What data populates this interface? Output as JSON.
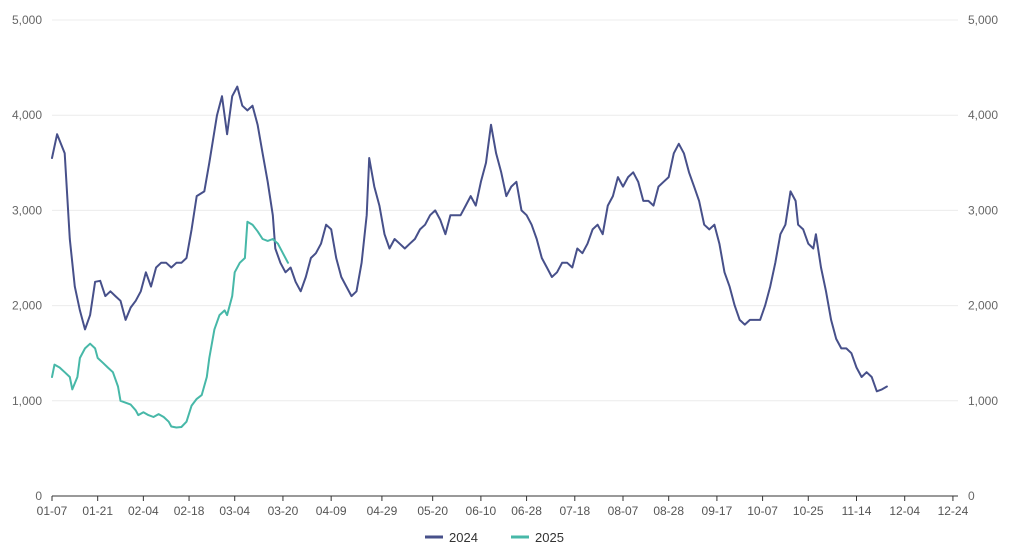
{
  "chart_data": {
    "type": "line",
    "title": "",
    "xlabel": "",
    "ylabel": "",
    "ylim": [
      0,
      5000
    ],
    "y_ticks": [
      "0",
      "1,000",
      "2,000",
      "3,000",
      "4,000",
      "5,000"
    ],
    "y_tick_values": [
      0,
      1000,
      2000,
      3000,
      4000,
      5000
    ],
    "x_range": [
      1,
      358
    ],
    "x_tick_labels": [
      "01-07",
      "01-21",
      "02-04",
      "02-18",
      "03-04",
      "03-20",
      "04-09",
      "04-29",
      "05-20",
      "06-10",
      "06-28",
      "07-18",
      "08-07",
      "08-28",
      "09-17",
      "10-07",
      "10-25",
      "11-14",
      "12-04",
      "12-24"
    ],
    "x_tick_values": [
      1,
      19,
      37,
      55,
      73,
      92,
      111,
      131,
      151,
      170,
      188,
      207,
      226,
      244,
      263,
      281,
      299,
      318,
      337,
      356
    ],
    "grid": true,
    "dual_y_axis": true,
    "legend_position": "bottom",
    "series": [
      {
        "name": "2024",
        "color": "#47508a",
        "points": [
          [
            1,
            3550
          ],
          [
            3,
            3800
          ],
          [
            6,
            3600
          ],
          [
            8,
            2700
          ],
          [
            10,
            2200
          ],
          [
            12,
            1950
          ],
          [
            14,
            1750
          ],
          [
            16,
            1900
          ],
          [
            18,
            2250
          ],
          [
            20,
            2260
          ],
          [
            22,
            2100
          ],
          [
            24,
            2150
          ],
          [
            26,
            2100
          ],
          [
            28,
            2050
          ],
          [
            30,
            1850
          ],
          [
            32,
            1980
          ],
          [
            34,
            2050
          ],
          [
            36,
            2150
          ],
          [
            38,
            2350
          ],
          [
            40,
            2200
          ],
          [
            42,
            2400
          ],
          [
            44,
            2450
          ],
          [
            46,
            2450
          ],
          [
            48,
            2400
          ],
          [
            50,
            2450
          ],
          [
            52,
            2450
          ],
          [
            54,
            2500
          ],
          [
            56,
            2800
          ],
          [
            58,
            3150
          ],
          [
            61,
            3200
          ],
          [
            63,
            3500
          ],
          [
            66,
            4000
          ],
          [
            68,
            4200
          ],
          [
            70,
            3800
          ],
          [
            72,
            4200
          ],
          [
            74,
            4300
          ],
          [
            76,
            4100
          ],
          [
            78,
            4050
          ],
          [
            80,
            4100
          ],
          [
            82,
            3900
          ],
          [
            84,
            3600
          ],
          [
            86,
            3300
          ],
          [
            88,
            2950
          ],
          [
            89,
            2600
          ],
          [
            91,
            2450
          ],
          [
            93,
            2350
          ],
          [
            95,
            2400
          ],
          [
            97,
            2250
          ],
          [
            99,
            2150
          ],
          [
            101,
            2300
          ],
          [
            103,
            2500
          ],
          [
            105,
            2550
          ],
          [
            107,
            2650
          ],
          [
            109,
            2850
          ],
          [
            111,
            2800
          ],
          [
            113,
            2500
          ],
          [
            115,
            2300
          ],
          [
            117,
            2200
          ],
          [
            119,
            2100
          ],
          [
            121,
            2150
          ],
          [
            123,
            2450
          ],
          [
            125,
            2950
          ],
          [
            126,
            3550
          ],
          [
            128,
            3250
          ],
          [
            130,
            3050
          ],
          [
            132,
            2750
          ],
          [
            134,
            2600
          ],
          [
            136,
            2700
          ],
          [
            138,
            2650
          ],
          [
            140,
            2600
          ],
          [
            142,
            2650
          ],
          [
            144,
            2700
          ],
          [
            146,
            2800
          ],
          [
            148,
            2850
          ],
          [
            150,
            2950
          ],
          [
            152,
            3000
          ],
          [
            154,
            2900
          ],
          [
            156,
            2750
          ],
          [
            158,
            2950
          ],
          [
            160,
            2950
          ],
          [
            162,
            2950
          ],
          [
            164,
            3050
          ],
          [
            166,
            3150
          ],
          [
            168,
            3050
          ],
          [
            170,
            3300
          ],
          [
            172,
            3500
          ],
          [
            174,
            3900
          ],
          [
            176,
            3600
          ],
          [
            178,
            3400
          ],
          [
            180,
            3150
          ],
          [
            182,
            3250
          ],
          [
            184,
            3300
          ],
          [
            186,
            3000
          ],
          [
            188,
            2950
          ],
          [
            190,
            2850
          ],
          [
            192,
            2700
          ],
          [
            194,
            2500
          ],
          [
            196,
            2400
          ],
          [
            198,
            2300
          ],
          [
            200,
            2350
          ],
          [
            202,
            2450
          ],
          [
            204,
            2450
          ],
          [
            206,
            2400
          ],
          [
            208,
            2600
          ],
          [
            210,
            2550
          ],
          [
            212,
            2650
          ],
          [
            214,
            2800
          ],
          [
            216,
            2850
          ],
          [
            218,
            2750
          ],
          [
            220,
            3050
          ],
          [
            222,
            3150
          ],
          [
            224,
            3350
          ],
          [
            226,
            3250
          ],
          [
            228,
            3350
          ],
          [
            230,
            3400
          ],
          [
            232,
            3300
          ],
          [
            234,
            3100
          ],
          [
            236,
            3100
          ],
          [
            238,
            3050
          ],
          [
            240,
            3250
          ],
          [
            242,
            3300
          ],
          [
            244,
            3350
          ],
          [
            246,
            3600
          ],
          [
            248,
            3700
          ],
          [
            250,
            3600
          ],
          [
            252,
            3400
          ],
          [
            254,
            3250
          ],
          [
            256,
            3100
          ],
          [
            258,
            2850
          ],
          [
            260,
            2800
          ],
          [
            262,
            2850
          ],
          [
            264,
            2650
          ],
          [
            266,
            2350
          ],
          [
            268,
            2200
          ],
          [
            270,
            2000
          ],
          [
            272,
            1850
          ],
          [
            274,
            1800
          ],
          [
            276,
            1850
          ],
          [
            278,
            1850
          ],
          [
            280,
            1850
          ],
          [
            282,
            2000
          ],
          [
            284,
            2200
          ],
          [
            286,
            2450
          ],
          [
            288,
            2750
          ],
          [
            290,
            2850
          ],
          [
            292,
            3200
          ],
          [
            294,
            3100
          ],
          [
            295,
            2850
          ],
          [
            297,
            2800
          ],
          [
            299,
            2650
          ],
          [
            301,
            2600
          ],
          [
            302,
            2750
          ],
          [
            304,
            2400
          ],
          [
            306,
            2150
          ],
          [
            308,
            1850
          ],
          [
            310,
            1650
          ],
          [
            312,
            1550
          ],
          [
            314,
            1550
          ],
          [
            316,
            1500
          ],
          [
            318,
            1350
          ],
          [
            320,
            1250
          ],
          [
            322,
            1300
          ],
          [
            324,
            1250
          ],
          [
            326,
            1100
          ],
          [
            328,
            1120
          ],
          [
            330,
            1150
          ]
        ]
      },
      {
        "name": "2025",
        "color": "#47b8a8",
        "points": [
          [
            1,
            1250
          ],
          [
            2,
            1380
          ],
          [
            4,
            1350
          ],
          [
            6,
            1300
          ],
          [
            8,
            1250
          ],
          [
            9,
            1120
          ],
          [
            11,
            1250
          ],
          [
            12,
            1450
          ],
          [
            14,
            1550
          ],
          [
            16,
            1600
          ],
          [
            18,
            1550
          ],
          [
            19,
            1450
          ],
          [
            21,
            1400
          ],
          [
            23,
            1350
          ],
          [
            25,
            1300
          ],
          [
            27,
            1150
          ],
          [
            28,
            1000
          ],
          [
            30,
            980
          ],
          [
            32,
            960
          ],
          [
            34,
            900
          ],
          [
            35,
            850
          ],
          [
            37,
            880
          ],
          [
            39,
            850
          ],
          [
            41,
            830
          ],
          [
            43,
            860
          ],
          [
            45,
            830
          ],
          [
            47,
            780
          ],
          [
            48,
            730
          ],
          [
            50,
            720
          ],
          [
            52,
            725
          ],
          [
            54,
            780
          ],
          [
            56,
            950
          ],
          [
            58,
            1020
          ],
          [
            60,
            1060
          ],
          [
            62,
            1250
          ],
          [
            63,
            1450
          ],
          [
            65,
            1750
          ],
          [
            67,
            1900
          ],
          [
            69,
            1950
          ],
          [
            70,
            1900
          ],
          [
            72,
            2100
          ],
          [
            73,
            2350
          ],
          [
            75,
            2450
          ],
          [
            77,
            2500
          ],
          [
            78,
            2880
          ],
          [
            80,
            2850
          ],
          [
            82,
            2780
          ],
          [
            84,
            2700
          ],
          [
            86,
            2680
          ],
          [
            88,
            2700
          ],
          [
            90,
            2650
          ],
          [
            92,
            2550
          ],
          [
            94,
            2450
          ]
        ]
      }
    ]
  }
}
